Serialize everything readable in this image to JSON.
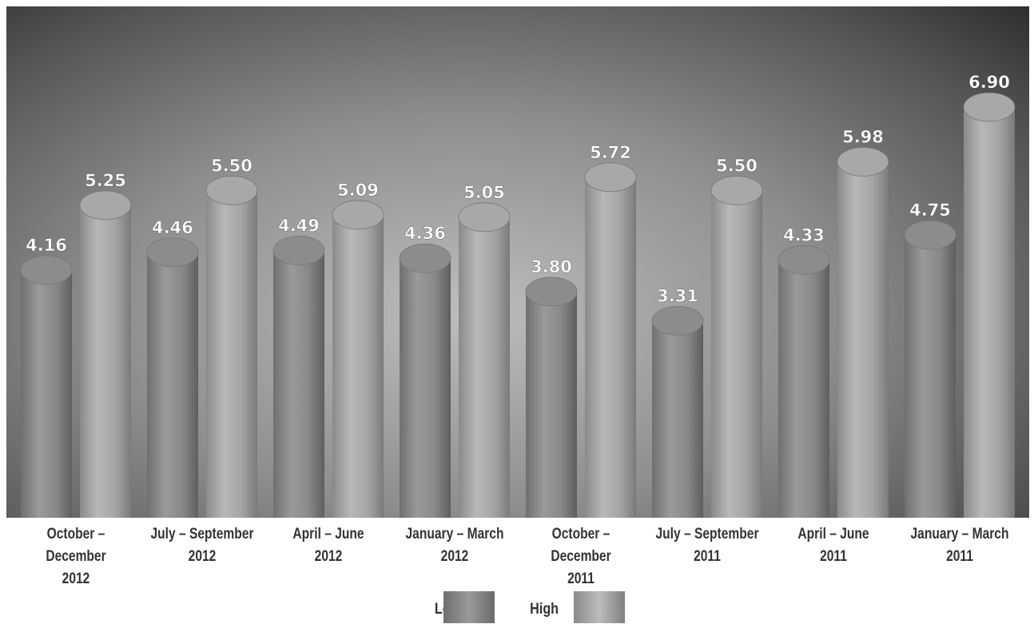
{
  "chart_data": {
    "type": "bar",
    "categories": [
      [
        "October – December",
        "2012"
      ],
      [
        "July – September",
        "2012"
      ],
      [
        "April – June",
        "2012"
      ],
      [
        "January – March",
        "2012"
      ],
      [
        "October – December",
        "2011"
      ],
      [
        "July – September",
        "2011"
      ],
      [
        "April – June",
        "2011"
      ],
      [
        "January – March",
        "2011"
      ]
    ],
    "series": [
      {
        "name": "Low",
        "values": [
          4.16,
          4.46,
          4.49,
          4.36,
          3.8,
          3.31,
          4.33,
          4.75
        ],
        "color": "#8a8a8a"
      },
      {
        "name": "High",
        "values": [
          5.25,
          5.5,
          5.09,
          5.05,
          5.72,
          5.5,
          5.98,
          6.9
        ],
        "color": "#a6a6a6"
      }
    ],
    "value_labels": {
      "Low": [
        "4.16",
        "4.46",
        "4.49",
        "4.36",
        "3.80",
        "3.31",
        "4.33",
        "4.75"
      ],
      "High": [
        "5.25",
        "5.50",
        "5.09",
        "5.05",
        "5.72",
        "5.50",
        "5.98",
        "6.90"
      ]
    },
    "ylim": [
      0,
      8
    ],
    "grid": false,
    "legend_position": "bottom-center",
    "style": "3d-cylinder"
  },
  "legend": {
    "low_label": "Low",
    "high_label": "High"
  }
}
